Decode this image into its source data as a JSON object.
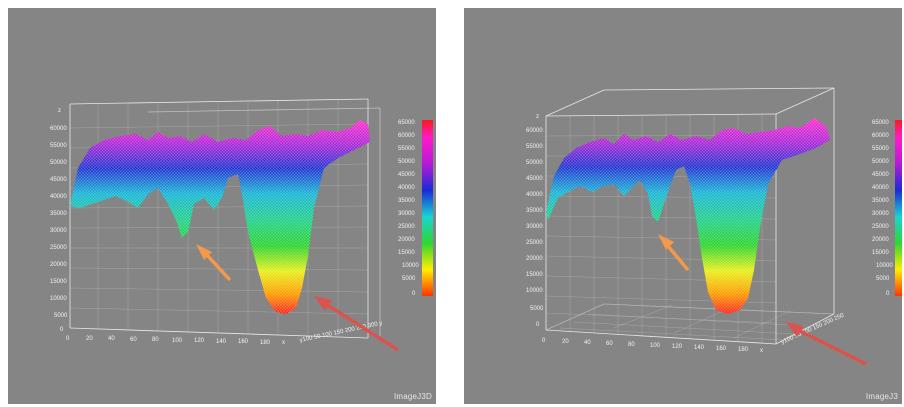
{
  "panels": [
    {
      "id": "left",
      "caption": "ImageJ3D",
      "x_ticks": [
        "0",
        "20",
        "40",
        "60",
        "80",
        "100",
        "120",
        "140",
        "160",
        "180",
        "x"
      ],
      "y_axis_text": "y100 50 100 150 200 250 300 y",
      "z_ticks": [
        "z",
        "60000",
        "55000",
        "50000",
        "45000",
        "40000",
        "35000",
        "30000",
        "25000",
        "20000",
        "15000",
        "10000",
        "5000",
        "0"
      ],
      "colorbar_ticks": [
        "65000",
        "60000",
        "55000",
        "50000",
        "45000",
        "40000",
        "35000",
        "30000",
        "25000",
        "20000",
        "15000",
        "10000",
        "5000",
        "0"
      ],
      "arrows": [
        "orange-arrow",
        "red-arrow"
      ]
    },
    {
      "id": "right",
      "caption": "ImageJ3",
      "x_ticks": [
        "0",
        "20",
        "40",
        "60",
        "80",
        "100",
        "120",
        "140",
        "160",
        "180",
        "x"
      ],
      "y_axis_text": "y100 50 100 150 200 250",
      "z_ticks": [
        "z",
        "60000",
        "55000",
        "50000",
        "45000",
        "40000",
        "35000",
        "30000",
        "25000",
        "20000",
        "15000",
        "10000",
        "5000",
        "0"
      ],
      "colorbar_ticks": [
        "65000",
        "60000",
        "55000",
        "50000",
        "45000",
        "40000",
        "35000",
        "30000",
        "25000",
        "20000",
        "15000",
        "10000",
        "5000",
        "0"
      ],
      "arrows": [
        "orange-arrow",
        "red-arrow"
      ]
    }
  ],
  "colors": {
    "background": "#858585",
    "frame": "#e8e8e8",
    "arrow_orange": "#f39a4a",
    "arrow_red": "#d9534f",
    "colorbar_stops": [
      "#ff1a1a",
      "#ff8a00",
      "#ffee00",
      "#2fd62f",
      "#1ad3d3",
      "#1a2bd6",
      "#b51ad6",
      "#ff1acb"
    ]
  }
}
